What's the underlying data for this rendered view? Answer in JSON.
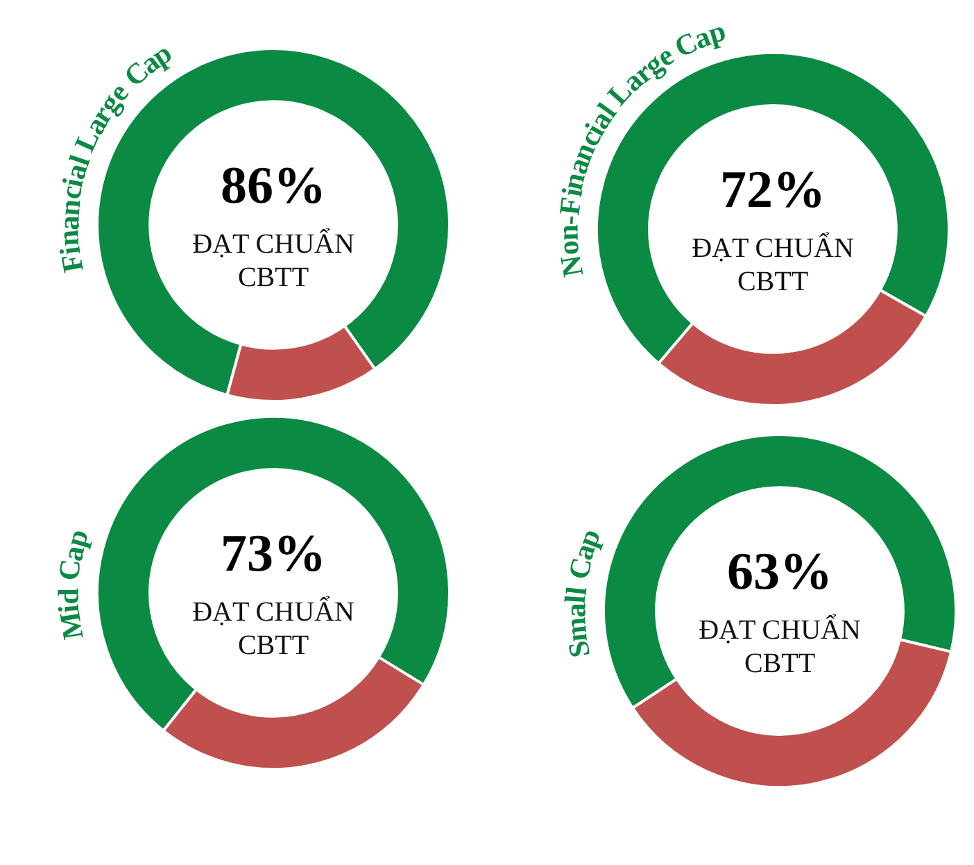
{
  "chart_data": [
    {
      "type": "donut",
      "title": "Financial Large Cap",
      "categories": [
        null,
        null
      ],
      "values": [
        86,
        14
      ],
      "colors": [
        "#0a8a43",
        "#c0504d"
      ],
      "value_labels": [
        "86%",
        null
      ],
      "annotations": [
        "ĐẠT CHUẨN CBTT"
      ]
    },
    {
      "type": "donut",
      "title": "Non-Financial Large Cap",
      "categories": [
        null,
        null
      ],
      "values": [
        72,
        28
      ],
      "colors": [
        "#0a8a43",
        "#c0504d"
      ],
      "value_labels": [
        "72%",
        null
      ],
      "annotations": [
        "ĐẠT CHUẨN CBTT"
      ]
    },
    {
      "type": "donut",
      "title": "Mid Cap",
      "categories": [
        null,
        null
      ],
      "values": [
        73,
        27
      ],
      "colors": [
        "#0a8a43",
        "#c0504d"
      ],
      "value_labels": [
        "73%",
        null
      ],
      "annotations": [
        "ĐẠT CHUẨN CBTT"
      ]
    },
    {
      "type": "donut",
      "title": "Small Cap",
      "categories": [
        null,
        null
      ],
      "values": [
        63,
        37
      ],
      "colors": [
        "#0a8a43",
        "#c0504d"
      ],
      "value_labels": [
        "63%",
        null
      ],
      "annotations": [
        "ĐẠT CHUẨN CBTT"
      ]
    }
  ]
}
